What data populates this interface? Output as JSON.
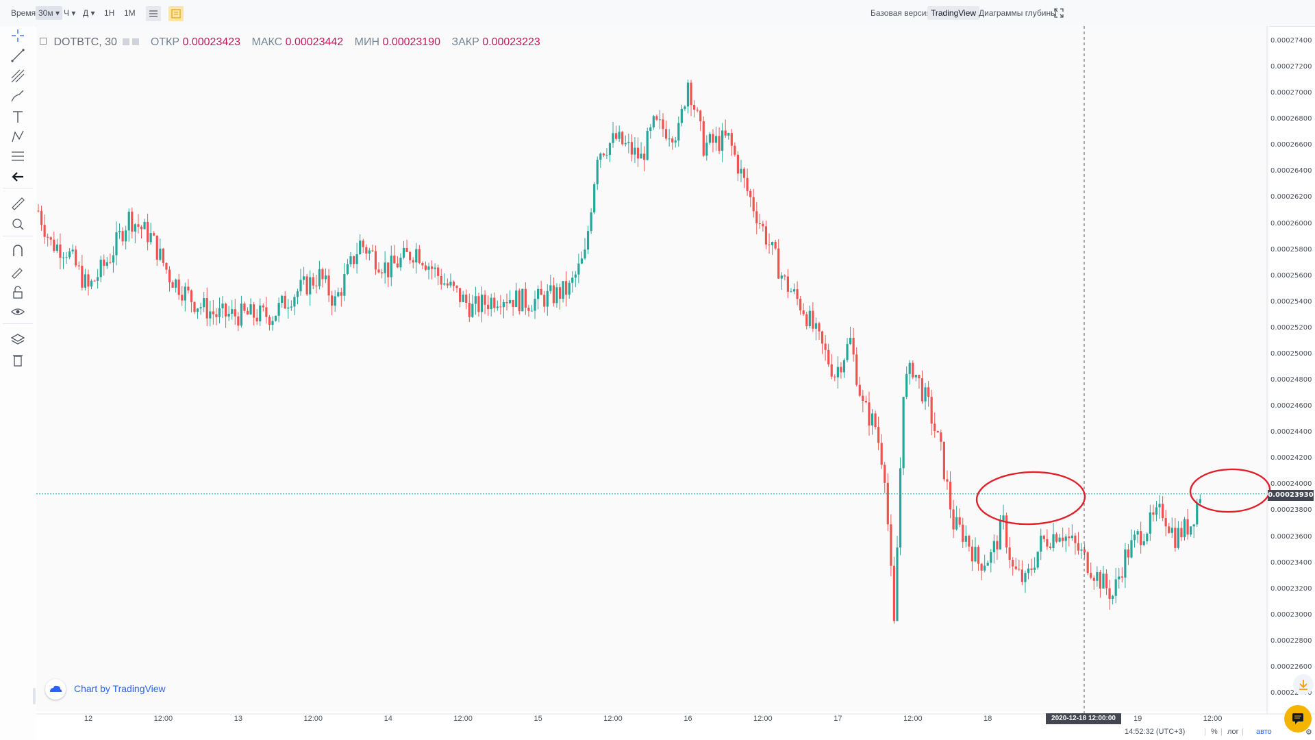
{
  "toolbar": {
    "time_label": "Время",
    "intervals": [
      "30м",
      "Ч",
      "Д",
      "1Н",
      "1М"
    ],
    "selected_interval": "30м",
    "views": [
      "Базовая версия",
      "TradingView",
      "Диаграммы глубины"
    ],
    "active_view": "TradingView"
  },
  "legend": {
    "symbol": "DOTBTC, 30",
    "open_label": "ОТКР",
    "open": "0.00023423",
    "high_label": "МАКС",
    "high": "0.00023442",
    "low_label": "МИН",
    "low": "0.00023190",
    "close_label": "ЗАКР",
    "close": "0.00023223"
  },
  "watermark": "Chart by TradingView",
  "crosshair_time": "2020-12-18 12:00:00",
  "last_price": "0.00023930",
  "bottom": {
    "clock": "14:52:32 (UTC+3)",
    "percent": "%",
    "log": "лог",
    "auto": "авто"
  },
  "colors": {
    "up": "#26a69a",
    "down": "#ef5350",
    "annotation": "#e0202a"
  },
  "chart_data": {
    "type": "candlestick",
    "title": "DOTBTC, 30",
    "y_ticks": [
      "0.00027400",
      "0.00027200",
      "0.00027000",
      "0.00026800",
      "0.00026600",
      "0.00026400",
      "0.00026200",
      "0.00026000",
      "0.00025800",
      "0.00025600",
      "0.00025400",
      "0.00025200",
      "0.00025000",
      "0.00024800",
      "0.00024600",
      "0.00024400",
      "0.00024200",
      "0.00024000",
      "0.00023800",
      "0.00023600",
      "0.00023400",
      "0.00023200",
      "0.00023000",
      "0.00022800",
      "0.00022600",
      "0.00022400"
    ],
    "x_ticks": [
      "12",
      "12:00",
      "13",
      "12:00",
      "14",
      "12:00",
      "15",
      "12:00",
      "16",
      "12:00",
      "17",
      "12:00",
      "18",
      "12:00",
      "19",
      "12:00"
    ],
    "ylim": [
      0.000224,
      0.000274
    ],
    "grid": false,
    "path": [
      [
        0,
        0.000261
      ],
      [
        4,
        0.0002585
      ],
      [
        9,
        0.000258
      ],
      [
        16,
        0.000255
      ],
      [
        23,
        0.0002575
      ],
      [
        29,
        0.0002605
      ],
      [
        36,
        0.000259
      ],
      [
        42,
        0.000256
      ],
      [
        50,
        0.000254
      ],
      [
        57,
        0.000253
      ],
      [
        65,
        0.000253
      ],
      [
        75,
        0.000253
      ],
      [
        81,
        0.0002545
      ],
      [
        90,
        0.000256
      ],
      [
        95,
        0.000254
      ],
      [
        103,
        0.0002585
      ],
      [
        112,
        0.0002565
      ],
      [
        121,
        0.000258
      ],
      [
        130,
        0.0002555
      ],
      [
        139,
        0.0002535
      ],
      [
        148,
        0.0002545
      ],
      [
        157,
        0.000254
      ],
      [
        165,
        0.0002545
      ],
      [
        170,
        0.000255
      ],
      [
        175,
        0.0002575
      ],
      [
        179,
        0.0002655
      ],
      [
        185,
        0.0002665
      ],
      [
        193,
        0.000265
      ],
      [
        197,
        0.0002675
      ],
      [
        205,
        0.000267
      ],
      [
        208,
        0.000271
      ],
      [
        213,
        0.000266
      ],
      [
        221,
        0.0002665
      ],
      [
        227,
        0.0002625
      ],
      [
        233,
        0.000259
      ],
      [
        239,
        0.0002555
      ],
      [
        245,
        0.0002535
      ],
      [
        249,
        0.0002515
      ],
      [
        255,
        0.0002485
      ],
      [
        260,
        0.000251
      ],
      [
        264,
        0.000246
      ],
      [
        268,
        0.0002445
      ],
      [
        271,
        0.000241
      ],
      [
        274,
        0.000229
      ],
      [
        277,
        0.0002475
      ],
      [
        280,
        0.000249
      ],
      [
        285,
        0.000246
      ],
      [
        289,
        0.0002425
      ],
      [
        293,
        0.000237
      ],
      [
        297,
        0.000236
      ],
      [
        301,
        0.000234
      ],
      [
        305,
        0.0002345
      ],
      [
        309,
        0.000237
      ],
      [
        312,
        0.0002335
      ],
      [
        316,
        0.0002325
      ],
      [
        321,
        0.0002355
      ],
      [
        327,
        0.0002365
      ],
      [
        333,
        0.000235
      ],
      [
        339,
        0.000233
      ],
      [
        344,
        0.0002315
      ],
      [
        348,
        0.0002345
      ],
      [
        352,
        0.000236
      ],
      [
        356,
        0.000237
      ],
      [
        360,
        0.000238
      ],
      [
        364,
        0.000236
      ],
      [
        369,
        0.000237
      ],
      [
        372,
        0.00023935
      ]
    ],
    "bars_per_day": 48,
    "annotations": [
      "circle around 0.000239 level (Dec 17–18)",
      "circle around 0.000239 level (Dec 19)"
    ]
  }
}
